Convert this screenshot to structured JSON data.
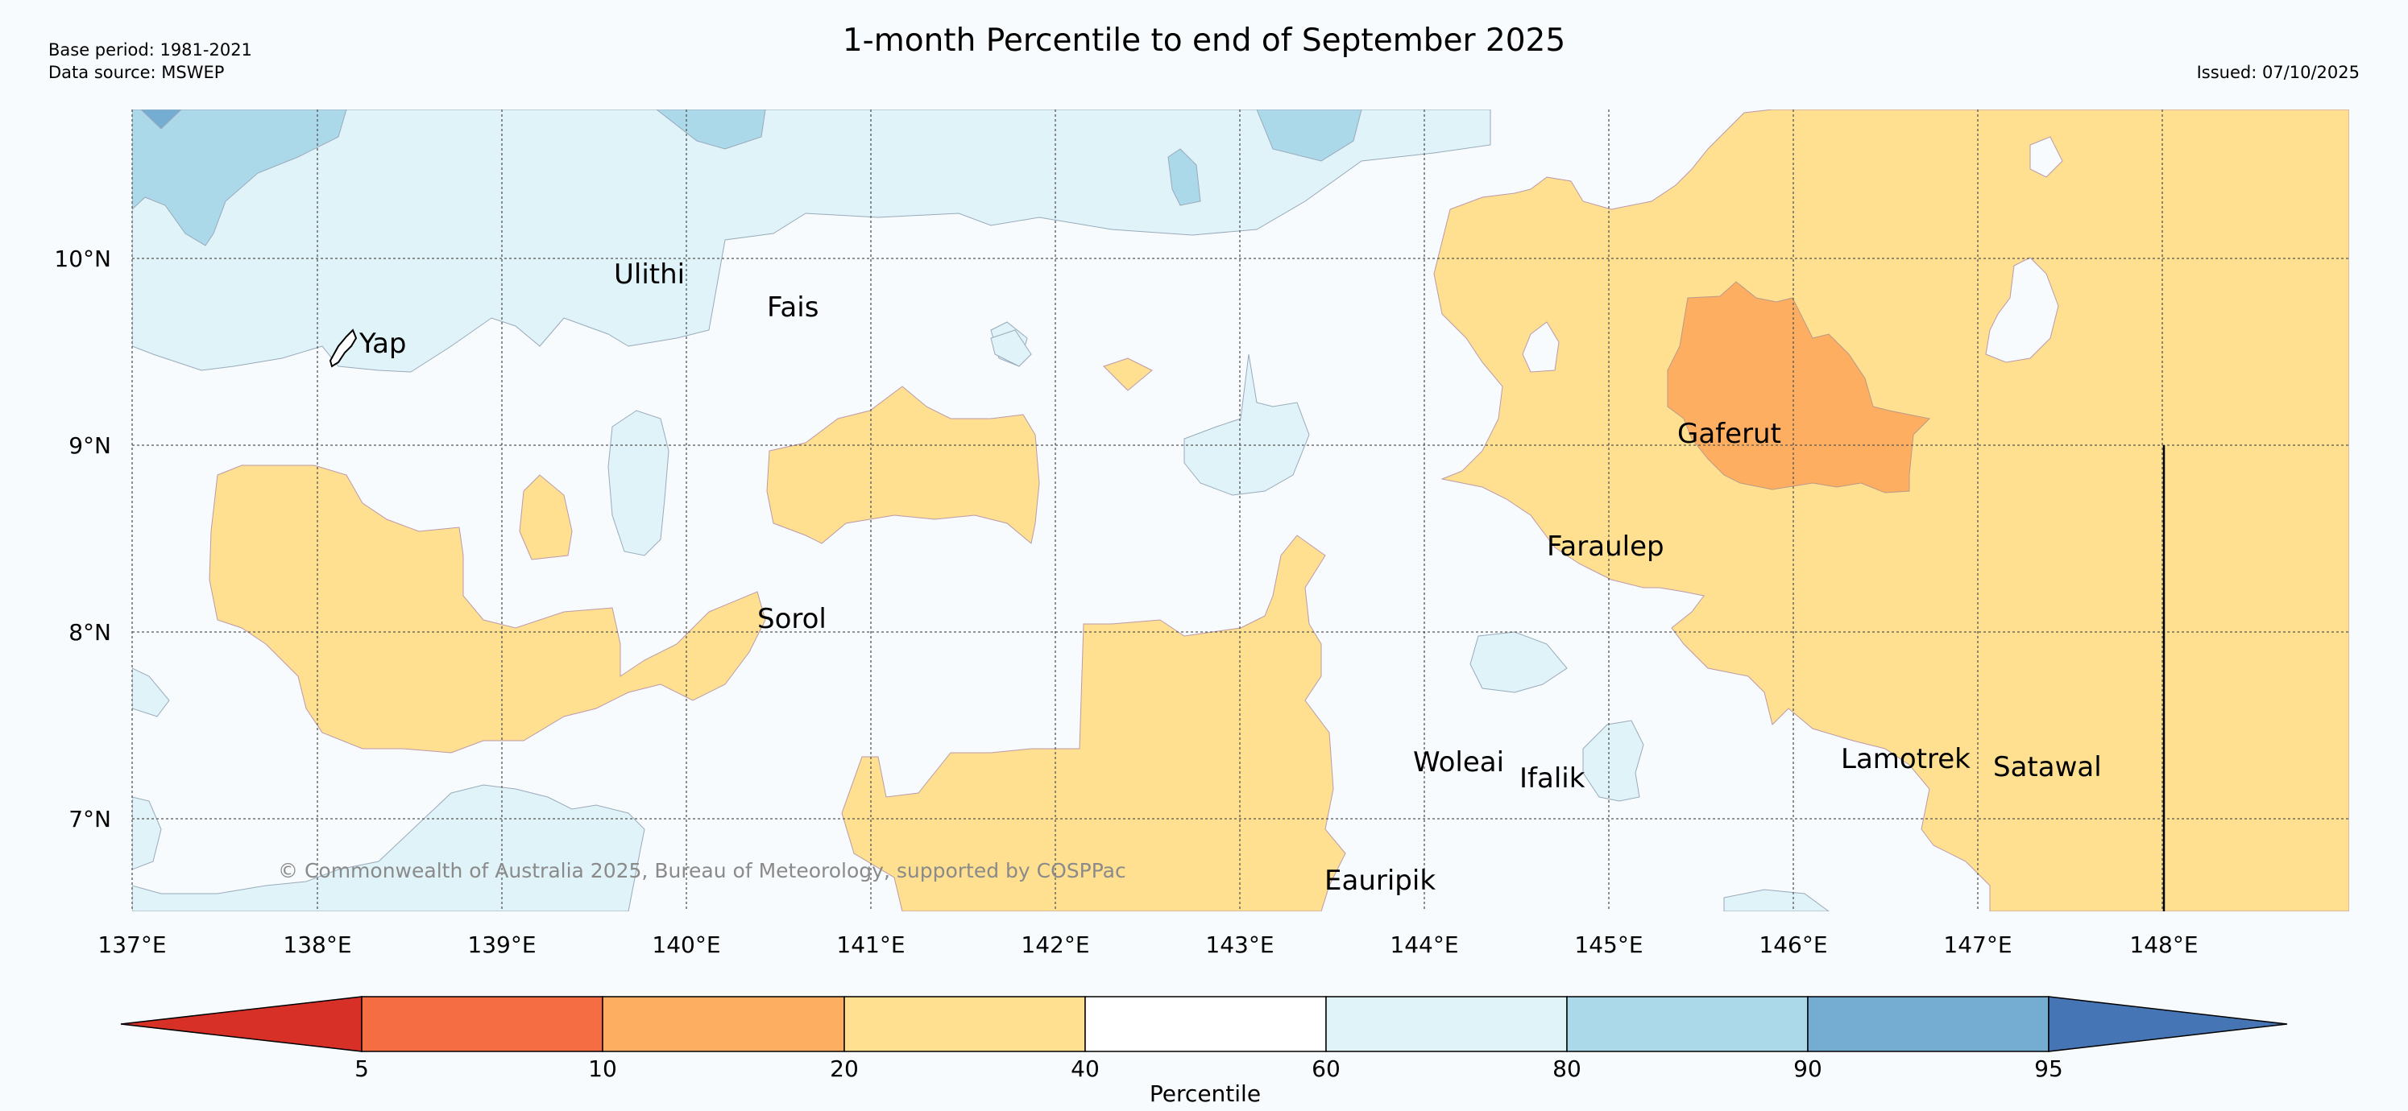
{
  "header": {
    "base_period": "Base period: 1981-2021",
    "data_source": "Data source: MSWEP",
    "title": "1-month Percentile to end of September 2025",
    "issued": "Issued: 07/10/2025"
  },
  "map": {
    "lon_labels": [
      "137°E",
      "138°E",
      "139°E",
      "140°E",
      "141°E",
      "142°E",
      "143°E",
      "144°E",
      "145°E",
      "146°E",
      "147°E",
      "148°E"
    ],
    "lat_labels": [
      "10°N",
      "9°N",
      "8°N",
      "7°N"
    ],
    "places": [
      "Ulithi",
      "Fais",
      "Yap",
      "Gaferut",
      "Faraulep",
      "Sorol",
      "Woleai",
      "Ifalik",
      "Lamotrek",
      "Satawal",
      "Eauripik"
    ],
    "copyright": "© Commonwealth of Australia 2025, Bureau of Meteorology, supported by COSPPac"
  },
  "colorbar": {
    "tick_labels": [
      "5",
      "10",
      "20",
      "40",
      "60",
      "80",
      "90",
      "95"
    ],
    "label": "Percentile",
    "colors": {
      "below_5": "#d73027",
      "5_10": "#f46d43",
      "10_20": "#fdae61",
      "20_40": "#fee090",
      "40_60": "#ffffff",
      "60_80": "#e0f3f8",
      "80_90": "#abd9e9",
      "90_95": "#74add1",
      "above_95": "#4575b4"
    }
  }
}
